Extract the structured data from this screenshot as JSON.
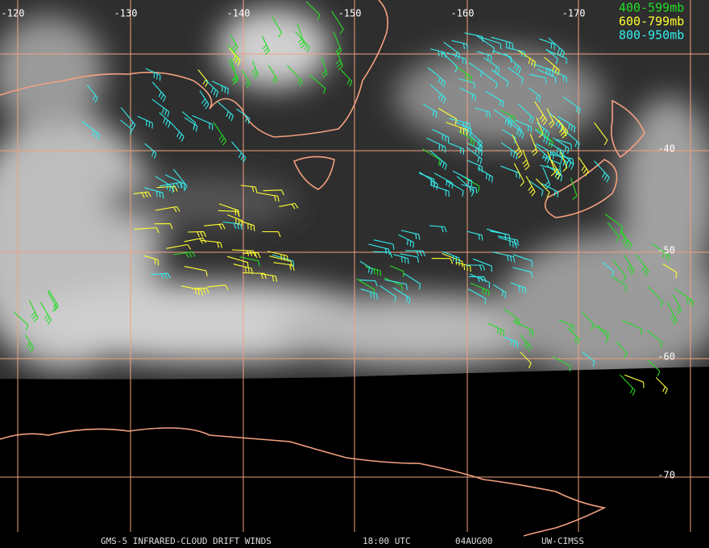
{
  "map": {
    "lon_labels": [
      -120,
      -130,
      -140,
      -150,
      -160,
      -170
    ],
    "lat_labels": [
      -40,
      -50,
      -60,
      -70
    ],
    "legend": [
      "400-599mb",
      "600-799mb",
      "800-950mb"
    ],
    "footer": {
      "title": "GMS-5 INFRARED-CLOUD DRIFT WINDS",
      "time": "18:00 UTC",
      "date": "04AUG00",
      "source": "UW-CIMSS"
    }
  }
}
